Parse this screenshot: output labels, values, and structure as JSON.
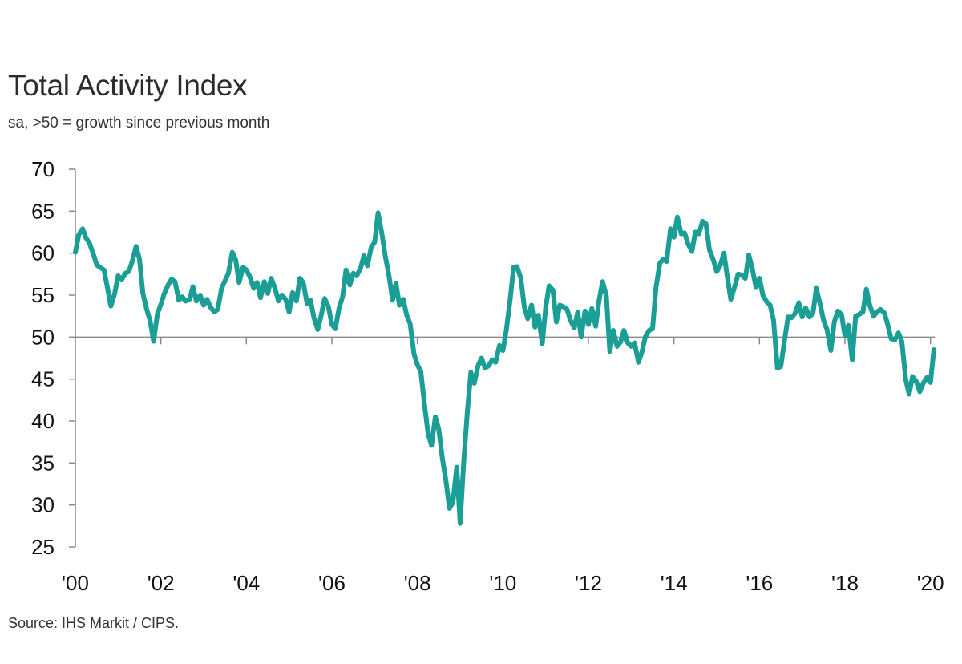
{
  "title": "Total Activity Index",
  "subtitle": "sa, >50 = growth since previous month",
  "source": "Source: IHS Markit / CIPS.",
  "colors": {
    "line": "#1a9e96",
    "axis": "#8a8a8a",
    "reference": "#8a8a8a"
  },
  "chart_data": {
    "type": "line",
    "title": "Total Activity Index",
    "subtitle": "sa, >50 = growth since previous month",
    "xlabel": "",
    "ylabel": "",
    "xlim": [
      2000.0,
      2020.1
    ],
    "ylim": [
      25,
      70
    ],
    "y_ticks": [
      70,
      65,
      60,
      55,
      50,
      45,
      40,
      35,
      30,
      25
    ],
    "x_ticks": [
      {
        "value": 2000,
        "label": "'00"
      },
      {
        "value": 2002,
        "label": "'02"
      },
      {
        "value": 2004,
        "label": "'04"
      },
      {
        "value": 2006,
        "label": "'06"
      },
      {
        "value": 2008,
        "label": "'08"
      },
      {
        "value": 2010,
        "label": "'10"
      },
      {
        "value": 2012,
        "label": "'12"
      },
      {
        "value": 2014,
        "label": "'14"
      },
      {
        "value": 2016,
        "label": "'16"
      },
      {
        "value": 2018,
        "label": "'18"
      },
      {
        "value": 2020,
        "label": "'20"
      }
    ],
    "reference_line": 50,
    "grid": false,
    "series": [
      {
        "color": "#1a9e96",
        "points": [
          [
            2000.0,
            60.1
          ],
          [
            2000.08,
            62.2
          ],
          [
            2000.17,
            62.9
          ],
          [
            2000.25,
            61.8
          ],
          [
            2000.33,
            61.2
          ],
          [
            2000.42,
            59.9
          ],
          [
            2000.5,
            58.6
          ],
          [
            2000.58,
            58.3
          ],
          [
            2000.67,
            58.0
          ],
          [
            2000.75,
            55.9
          ],
          [
            2000.83,
            53.7
          ],
          [
            2000.92,
            55.2
          ],
          [
            2001.0,
            57.3
          ],
          [
            2001.08,
            56.8
          ],
          [
            2001.17,
            57.6
          ],
          [
            2001.25,
            57.8
          ],
          [
            2001.33,
            59.0
          ],
          [
            2001.42,
            60.8
          ],
          [
            2001.5,
            59.3
          ],
          [
            2001.58,
            55.2
          ],
          [
            2001.67,
            53.3
          ],
          [
            2001.75,
            51.9
          ],
          [
            2001.83,
            49.5
          ],
          [
            2001.92,
            52.8
          ],
          [
            2002.0,
            53.9
          ],
          [
            2002.08,
            55.2
          ],
          [
            2002.17,
            56.2
          ],
          [
            2002.25,
            56.9
          ],
          [
            2002.33,
            56.6
          ],
          [
            2002.42,
            54.4
          ],
          [
            2002.5,
            54.8
          ],
          [
            2002.58,
            54.3
          ],
          [
            2002.67,
            54.5
          ],
          [
            2002.75,
            56.0
          ],
          [
            2002.83,
            54.3
          ],
          [
            2002.92,
            55.0
          ],
          [
            2003.0,
            53.8
          ],
          [
            2003.08,
            54.5
          ],
          [
            2003.17,
            53.5
          ],
          [
            2003.25,
            53.0
          ],
          [
            2003.33,
            53.3
          ],
          [
            2003.42,
            55.8
          ],
          [
            2003.5,
            56.7
          ],
          [
            2003.58,
            57.6
          ],
          [
            2003.67,
            60.1
          ],
          [
            2003.75,
            59.2
          ],
          [
            2003.83,
            56.5
          ],
          [
            2003.92,
            58.3
          ],
          [
            2004.0,
            58.0
          ],
          [
            2004.08,
            57.2
          ],
          [
            2004.17,
            55.8
          ],
          [
            2004.25,
            56.5
          ],
          [
            2004.33,
            54.7
          ],
          [
            2004.42,
            56.6
          ],
          [
            2004.5,
            55.2
          ],
          [
            2004.58,
            57.0
          ],
          [
            2004.67,
            55.8
          ],
          [
            2004.75,
            54.3
          ],
          [
            2004.83,
            55.0
          ],
          [
            2004.92,
            54.5
          ],
          [
            2005.0,
            53.0
          ],
          [
            2005.08,
            55.3
          ],
          [
            2005.17,
            54.3
          ],
          [
            2005.25,
            57.0
          ],
          [
            2005.33,
            56.5
          ],
          [
            2005.42,
            54.0
          ],
          [
            2005.5,
            54.4
          ],
          [
            2005.58,
            52.3
          ],
          [
            2005.67,
            50.9
          ],
          [
            2005.75,
            52.6
          ],
          [
            2005.83,
            54.6
          ],
          [
            2005.92,
            53.6
          ],
          [
            2006.0,
            51.5
          ],
          [
            2006.08,
            51.0
          ],
          [
            2006.17,
            53.5
          ],
          [
            2006.25,
            54.8
          ],
          [
            2006.33,
            58.0
          ],
          [
            2006.42,
            56.2
          ],
          [
            2006.5,
            57.6
          ],
          [
            2006.58,
            57.3
          ],
          [
            2006.67,
            58.2
          ],
          [
            2006.75,
            59.7
          ],
          [
            2006.83,
            58.5
          ],
          [
            2006.92,
            60.7
          ],
          [
            2007.0,
            61.3
          ],
          [
            2007.08,
            64.8
          ],
          [
            2007.17,
            62.3
          ],
          [
            2007.25,
            59.6
          ],
          [
            2007.33,
            57.5
          ],
          [
            2007.42,
            54.4
          ],
          [
            2007.5,
            56.4
          ],
          [
            2007.58,
            53.8
          ],
          [
            2007.67,
            54.5
          ],
          [
            2007.75,
            52.6
          ],
          [
            2007.83,
            51.6
          ],
          [
            2007.92,
            48.0
          ],
          [
            2008.0,
            46.7
          ],
          [
            2008.08,
            45.9
          ],
          [
            2008.17,
            41.8
          ],
          [
            2008.25,
            38.5
          ],
          [
            2008.33,
            37.1
          ],
          [
            2008.42,
            40.5
          ],
          [
            2008.5,
            39.0
          ],
          [
            2008.58,
            35.7
          ],
          [
            2008.67,
            32.8
          ],
          [
            2008.75,
            29.6
          ],
          [
            2008.83,
            30.3
          ],
          [
            2008.92,
            34.5
          ],
          [
            2009.0,
            27.8
          ],
          [
            2009.08,
            34.9
          ],
          [
            2009.17,
            41.2
          ],
          [
            2009.25,
            45.8
          ],
          [
            2009.33,
            44.5
          ],
          [
            2009.42,
            46.6
          ],
          [
            2009.5,
            47.5
          ],
          [
            2009.58,
            46.3
          ],
          [
            2009.67,
            46.6
          ],
          [
            2009.75,
            47.3
          ],
          [
            2009.83,
            47.0
          ],
          [
            2009.92,
            49.0
          ],
          [
            2010.0,
            48.4
          ],
          [
            2010.08,
            50.8
          ],
          [
            2010.17,
            54.5
          ],
          [
            2010.25,
            58.3
          ],
          [
            2010.33,
            58.4
          ],
          [
            2010.42,
            57.0
          ],
          [
            2010.5,
            53.6
          ],
          [
            2010.58,
            52.2
          ],
          [
            2010.67,
            53.8
          ],
          [
            2010.75,
            51.2
          ],
          [
            2010.83,
            52.6
          ],
          [
            2010.92,
            49.2
          ],
          [
            2011.0,
            53.5
          ],
          [
            2011.08,
            56.1
          ],
          [
            2011.17,
            55.6
          ],
          [
            2011.25,
            51.8
          ],
          [
            2011.33,
            53.8
          ],
          [
            2011.42,
            53.6
          ],
          [
            2011.5,
            53.3
          ],
          [
            2011.58,
            52.0
          ],
          [
            2011.67,
            51.1
          ],
          [
            2011.75,
            53.0
          ],
          [
            2011.83,
            50.0
          ],
          [
            2011.92,
            53.1
          ],
          [
            2012.0,
            51.5
          ],
          [
            2012.08,
            53.4
          ],
          [
            2012.17,
            51.3
          ],
          [
            2012.25,
            54.4
          ],
          [
            2012.33,
            56.6
          ],
          [
            2012.42,
            54.9
          ],
          [
            2012.5,
            48.3
          ],
          [
            2012.58,
            50.8
          ],
          [
            2012.67,
            48.9
          ],
          [
            2012.75,
            49.4
          ],
          [
            2012.83,
            50.8
          ],
          [
            2012.92,
            49.3
          ],
          [
            2013.0,
            48.9
          ],
          [
            2013.08,
            49.3
          ],
          [
            2013.17,
            47.0
          ],
          [
            2013.25,
            48.2
          ],
          [
            2013.33,
            50.0
          ],
          [
            2013.42,
            50.8
          ],
          [
            2013.5,
            51.0
          ],
          [
            2013.58,
            55.9
          ],
          [
            2013.67,
            58.8
          ],
          [
            2013.75,
            59.3
          ],
          [
            2013.83,
            59.0
          ],
          [
            2013.92,
            62.9
          ],
          [
            2014.0,
            61.9
          ],
          [
            2014.08,
            64.3
          ],
          [
            2014.17,
            62.3
          ],
          [
            2014.25,
            62.4
          ],
          [
            2014.33,
            61.1
          ],
          [
            2014.42,
            60.2
          ],
          [
            2014.5,
            62.5
          ],
          [
            2014.58,
            62.3
          ],
          [
            2014.67,
            63.8
          ],
          [
            2014.75,
            63.5
          ],
          [
            2014.83,
            60.4
          ],
          [
            2014.92,
            59.2
          ],
          [
            2015.0,
            57.8
          ],
          [
            2015.08,
            58.5
          ],
          [
            2015.17,
            60.0
          ],
          [
            2015.25,
            57.1
          ],
          [
            2015.33,
            54.5
          ],
          [
            2015.42,
            56.0
          ],
          [
            2015.5,
            57.5
          ],
          [
            2015.58,
            57.4
          ],
          [
            2015.67,
            57.0
          ],
          [
            2015.75,
            59.8
          ],
          [
            2015.83,
            58.2
          ],
          [
            2015.92,
            55.9
          ],
          [
            2016.0,
            57.0
          ],
          [
            2016.08,
            55.0
          ],
          [
            2016.17,
            54.2
          ],
          [
            2016.25,
            53.8
          ],
          [
            2016.33,
            52.0
          ],
          [
            2016.42,
            46.3
          ],
          [
            2016.5,
            46.5
          ],
          [
            2016.58,
            49.4
          ],
          [
            2016.67,
            52.4
          ],
          [
            2016.75,
            52.3
          ],
          [
            2016.83,
            52.8
          ],
          [
            2016.92,
            54.1
          ],
          [
            2017.0,
            52.4
          ],
          [
            2017.08,
            53.5
          ],
          [
            2017.17,
            52.4
          ],
          [
            2017.25,
            52.8
          ],
          [
            2017.33,
            55.8
          ],
          [
            2017.42,
            53.9
          ],
          [
            2017.5,
            52.0
          ],
          [
            2017.58,
            50.9
          ],
          [
            2017.67,
            48.4
          ],
          [
            2017.75,
            51.8
          ],
          [
            2017.83,
            53.1
          ],
          [
            2017.92,
            52.7
          ],
          [
            2018.0,
            50.1
          ],
          [
            2018.08,
            51.4
          ],
          [
            2018.17,
            47.3
          ],
          [
            2018.25,
            52.5
          ],
          [
            2018.33,
            52.7
          ],
          [
            2018.42,
            53.0
          ],
          [
            2018.5,
            55.7
          ],
          [
            2018.58,
            53.8
          ],
          [
            2018.67,
            52.5
          ],
          [
            2018.75,
            53.0
          ],
          [
            2018.83,
            53.3
          ],
          [
            2018.92,
            52.9
          ],
          [
            2019.0,
            51.5
          ],
          [
            2019.08,
            49.8
          ],
          [
            2019.17,
            49.7
          ],
          [
            2019.25,
            50.5
          ],
          [
            2019.33,
            49.5
          ],
          [
            2019.42,
            45.0
          ],
          [
            2019.5,
            43.2
          ],
          [
            2019.58,
            45.3
          ],
          [
            2019.67,
            44.7
          ],
          [
            2019.75,
            43.5
          ],
          [
            2019.83,
            44.5
          ],
          [
            2019.92,
            45.2
          ],
          [
            2020.0,
            44.6
          ],
          [
            2020.08,
            48.5
          ]
        ]
      }
    ]
  }
}
